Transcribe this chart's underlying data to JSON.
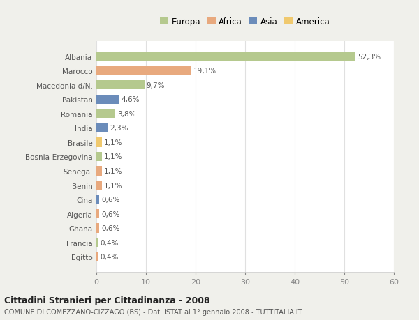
{
  "countries": [
    "Albania",
    "Marocco",
    "Macedonia d/N.",
    "Pakistan",
    "Romania",
    "India",
    "Brasile",
    "Bosnia-Erzegovina",
    "Senegal",
    "Benin",
    "Cina",
    "Algeria",
    "Ghana",
    "Francia",
    "Egitto"
  ],
  "values": [
    52.3,
    19.1,
    9.7,
    4.6,
    3.8,
    2.3,
    1.1,
    1.1,
    1.1,
    1.1,
    0.6,
    0.6,
    0.6,
    0.4,
    0.4
  ],
  "labels": [
    "52,3%",
    "19,1%",
    "9,7%",
    "4,6%",
    "3,8%",
    "2,3%",
    "1,1%",
    "1,1%",
    "1,1%",
    "1,1%",
    "0,6%",
    "0,6%",
    "0,6%",
    "0,4%",
    "0,4%"
  ],
  "continents": [
    "Europa",
    "Africa",
    "Europa",
    "Asia",
    "Europa",
    "Asia",
    "America",
    "Europa",
    "Africa",
    "Africa",
    "Asia",
    "Africa",
    "Africa",
    "Europa",
    "Africa"
  ],
  "continent_colors": {
    "Europa": "#b5c98e",
    "Africa": "#e8a97e",
    "Asia": "#6b8cba",
    "America": "#f0c96e"
  },
  "legend_order": [
    "Europa",
    "Africa",
    "Asia",
    "America"
  ],
  "title": "Cittadini Stranieri per Cittadinanza - 2008",
  "subtitle": "COMUNE DI COMEZZANO-CIZZAGO (BS) - Dati ISTAT al 1° gennaio 2008 - TUTTITALIA.IT",
  "xlim": [
    0,
    60
  ],
  "xticks": [
    0,
    10,
    20,
    30,
    40,
    50,
    60
  ],
  "background_color": "#f0f0eb",
  "plot_bg_color": "#ffffff",
  "grid_color": "#e0e0e0"
}
